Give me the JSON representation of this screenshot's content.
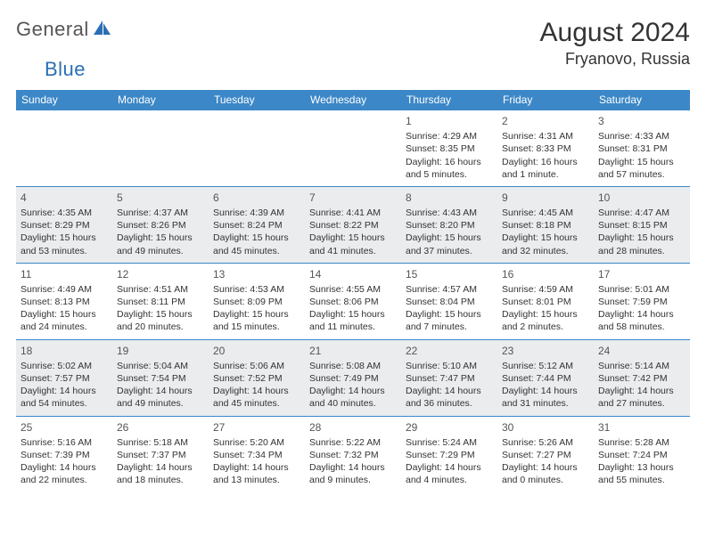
{
  "brand": {
    "general": "General",
    "blue": "Blue"
  },
  "title": "August 2024",
  "location": "Fryanovo, Russia",
  "colors": {
    "header_bg": "#3c87c7",
    "row_alt_bg": "#ebecee",
    "row_border": "#3c87c7",
    "text": "#333333",
    "dow_text": "#ffffff",
    "background": "#ffffff"
  },
  "days_of_week": [
    "Sunday",
    "Monday",
    "Tuesday",
    "Wednesday",
    "Thursday",
    "Friday",
    "Saturday"
  ],
  "grid": {
    "first_weekday_index": 4,
    "num_days": 31
  },
  "days": {
    "1": {
      "sunrise": "4:29 AM",
      "sunset": "8:35 PM",
      "daylight": "16 hours and 5 minutes."
    },
    "2": {
      "sunrise": "4:31 AM",
      "sunset": "8:33 PM",
      "daylight": "16 hours and 1 minute."
    },
    "3": {
      "sunrise": "4:33 AM",
      "sunset": "8:31 PM",
      "daylight": "15 hours and 57 minutes."
    },
    "4": {
      "sunrise": "4:35 AM",
      "sunset": "8:29 PM",
      "daylight": "15 hours and 53 minutes."
    },
    "5": {
      "sunrise": "4:37 AM",
      "sunset": "8:26 PM",
      "daylight": "15 hours and 49 minutes."
    },
    "6": {
      "sunrise": "4:39 AM",
      "sunset": "8:24 PM",
      "daylight": "15 hours and 45 minutes."
    },
    "7": {
      "sunrise": "4:41 AM",
      "sunset": "8:22 PM",
      "daylight": "15 hours and 41 minutes."
    },
    "8": {
      "sunrise": "4:43 AM",
      "sunset": "8:20 PM",
      "daylight": "15 hours and 37 minutes."
    },
    "9": {
      "sunrise": "4:45 AM",
      "sunset": "8:18 PM",
      "daylight": "15 hours and 32 minutes."
    },
    "10": {
      "sunrise": "4:47 AM",
      "sunset": "8:15 PM",
      "daylight": "15 hours and 28 minutes."
    },
    "11": {
      "sunrise": "4:49 AM",
      "sunset": "8:13 PM",
      "daylight": "15 hours and 24 minutes."
    },
    "12": {
      "sunrise": "4:51 AM",
      "sunset": "8:11 PM",
      "daylight": "15 hours and 20 minutes."
    },
    "13": {
      "sunrise": "4:53 AM",
      "sunset": "8:09 PM",
      "daylight": "15 hours and 15 minutes."
    },
    "14": {
      "sunrise": "4:55 AM",
      "sunset": "8:06 PM",
      "daylight": "15 hours and 11 minutes."
    },
    "15": {
      "sunrise": "4:57 AM",
      "sunset": "8:04 PM",
      "daylight": "15 hours and 7 minutes."
    },
    "16": {
      "sunrise": "4:59 AM",
      "sunset": "8:01 PM",
      "daylight": "15 hours and 2 minutes."
    },
    "17": {
      "sunrise": "5:01 AM",
      "sunset": "7:59 PM",
      "daylight": "14 hours and 58 minutes."
    },
    "18": {
      "sunrise": "5:02 AM",
      "sunset": "7:57 PM",
      "daylight": "14 hours and 54 minutes."
    },
    "19": {
      "sunrise": "5:04 AM",
      "sunset": "7:54 PM",
      "daylight": "14 hours and 49 minutes."
    },
    "20": {
      "sunrise": "5:06 AM",
      "sunset": "7:52 PM",
      "daylight": "14 hours and 45 minutes."
    },
    "21": {
      "sunrise": "5:08 AM",
      "sunset": "7:49 PM",
      "daylight": "14 hours and 40 minutes."
    },
    "22": {
      "sunrise": "5:10 AM",
      "sunset": "7:47 PM",
      "daylight": "14 hours and 36 minutes."
    },
    "23": {
      "sunrise": "5:12 AM",
      "sunset": "7:44 PM",
      "daylight": "14 hours and 31 minutes."
    },
    "24": {
      "sunrise": "5:14 AM",
      "sunset": "7:42 PM",
      "daylight": "14 hours and 27 minutes."
    },
    "25": {
      "sunrise": "5:16 AM",
      "sunset": "7:39 PM",
      "daylight": "14 hours and 22 minutes."
    },
    "26": {
      "sunrise": "5:18 AM",
      "sunset": "7:37 PM",
      "daylight": "14 hours and 18 minutes."
    },
    "27": {
      "sunrise": "5:20 AM",
      "sunset": "7:34 PM",
      "daylight": "14 hours and 13 minutes."
    },
    "28": {
      "sunrise": "5:22 AM",
      "sunset": "7:32 PM",
      "daylight": "14 hours and 9 minutes."
    },
    "29": {
      "sunrise": "5:24 AM",
      "sunset": "7:29 PM",
      "daylight": "14 hours and 4 minutes."
    },
    "30": {
      "sunrise": "5:26 AM",
      "sunset": "7:27 PM",
      "daylight": "14 hours and 0 minutes."
    },
    "31": {
      "sunrise": "5:28 AM",
      "sunset": "7:24 PM",
      "daylight": "13 hours and 55 minutes."
    }
  },
  "labels": {
    "sunrise": "Sunrise:",
    "sunset": "Sunset:",
    "daylight": "Daylight:"
  }
}
